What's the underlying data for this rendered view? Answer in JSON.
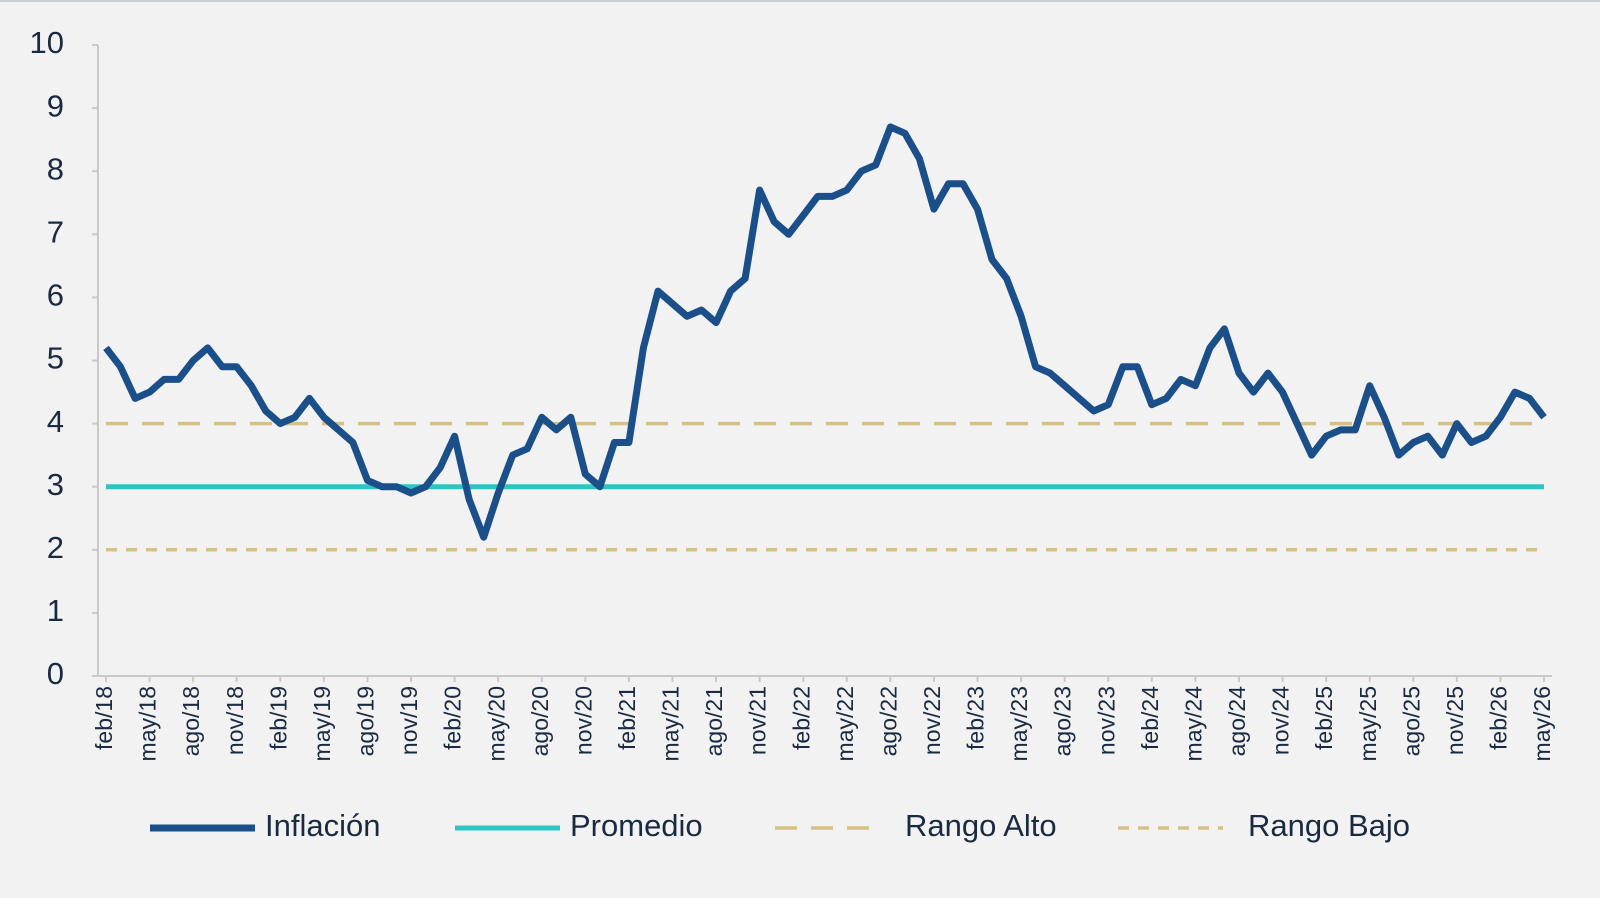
{
  "chart_data": {
    "type": "line",
    "categories": [
      "feb/18",
      null,
      null,
      "may/18",
      null,
      null,
      "ago/18",
      null,
      null,
      "nov/18",
      null,
      null,
      "feb/19",
      null,
      null,
      "may/19",
      null,
      null,
      "ago/19",
      null,
      null,
      "nov/19",
      null,
      null,
      "feb/20",
      null,
      null,
      "may/20",
      null,
      null,
      "ago/20",
      null,
      null,
      "nov/20",
      null,
      null,
      "feb/21",
      null,
      null,
      "may/21",
      null,
      null,
      "ago/21",
      null,
      null,
      "nov/21",
      null,
      null,
      "feb/22",
      null,
      null,
      "may/22",
      null,
      null,
      "ago/22",
      null,
      null,
      "nov/22",
      null,
      null,
      "feb/23",
      null,
      null,
      "may/23",
      null,
      null,
      "ago/23",
      null,
      null,
      "nov/23",
      null,
      null,
      "feb/24",
      null,
      null,
      "may/24",
      null,
      null,
      "ago/24",
      null,
      null,
      "nov/24",
      null,
      null,
      "feb/25",
      null,
      null,
      "may/25",
      null,
      null,
      "ago/25",
      null,
      null,
      "nov/25",
      null,
      null,
      "feb/26",
      null,
      null,
      "may/26"
    ],
    "series": [
      {
        "name": "Inflación",
        "color": "#1b4f8a",
        "dash": "none",
        "values": [
          5.2,
          4.9,
          4.4,
          4.5,
          4.7,
          4.7,
          5.0,
          5.2,
          4.9,
          4.9,
          4.6,
          4.2,
          4.0,
          4.1,
          4.4,
          4.1,
          3.9,
          3.7,
          3.1,
          3.0,
          3.0,
          2.9,
          3.0,
          3.3,
          3.8,
          2.8,
          2.2,
          2.9,
          3.5,
          3.6,
          4.1,
          3.9,
          4.1,
          3.2,
          3.0,
          3.7,
          3.7,
          5.2,
          6.1,
          5.9,
          5.7,
          5.8,
          5.6,
          6.1,
          6.3,
          7.7,
          7.2,
          7.0,
          7.3,
          7.6,
          7.6,
          7.7,
          8.0,
          8.1,
          8.7,
          8.6,
          8.2,
          7.4,
          7.8,
          7.8,
          7.4,
          6.6,
          6.3,
          5.7,
          4.9,
          4.8,
          4.6,
          4.4,
          4.2,
          4.3,
          4.9,
          4.9,
          4.3,
          4.4,
          4.7,
          4.6,
          5.2,
          5.5,
          4.8,
          4.5,
          4.8,
          4.5,
          4.0,
          3.5,
          3.8,
          3.9,
          3.9,
          4.6,
          4.1,
          3.5,
          3.7,
          3.8,
          3.5,
          4.0,
          3.7,
          3.8,
          4.1,
          4.5,
          4.4,
          4.1
        ]
      },
      {
        "name": "Promedio",
        "color": "#2ec4c4",
        "dash": "none",
        "values": [
          3,
          3,
          3,
          3,
          3,
          3,
          3,
          3,
          3,
          3,
          3,
          3,
          3,
          3,
          3,
          3,
          3,
          3,
          3,
          3,
          3,
          3,
          3,
          3,
          3,
          3,
          3,
          3,
          3,
          3,
          3,
          3,
          3,
          3,
          3,
          3,
          3,
          3,
          3,
          3,
          3,
          3,
          3,
          3,
          3,
          3,
          3,
          3,
          3,
          3,
          3,
          3,
          3,
          3,
          3,
          3,
          3,
          3,
          3,
          3,
          3,
          3,
          3,
          3,
          3,
          3,
          3,
          3,
          3,
          3,
          3,
          3,
          3,
          3,
          3,
          3,
          3,
          3,
          3,
          3,
          3,
          3,
          3,
          3,
          3,
          3,
          3,
          3,
          3,
          3,
          3,
          3,
          3,
          3,
          3,
          3,
          3,
          3,
          3,
          3
        ]
      },
      {
        "name": "Rango Alto",
        "color": "#d6c184",
        "dash": "22 14",
        "values": [
          4,
          4,
          4,
          4,
          4,
          4,
          4,
          4,
          4,
          4,
          4,
          4,
          4,
          4,
          4,
          4,
          4,
          4,
          4,
          4,
          4,
          4,
          4,
          4,
          4,
          4,
          4,
          4,
          4,
          4,
          4,
          4,
          4,
          4,
          4,
          4,
          4,
          4,
          4,
          4,
          4,
          4,
          4,
          4,
          4,
          4,
          4,
          4,
          4,
          4,
          4,
          4,
          4,
          4,
          4,
          4,
          4,
          4,
          4,
          4,
          4,
          4,
          4,
          4,
          4,
          4,
          4,
          4,
          4,
          4,
          4,
          4,
          4,
          4,
          4,
          4,
          4,
          4,
          4,
          4,
          4,
          4,
          4,
          4,
          4,
          4,
          4,
          4,
          4,
          4,
          4,
          4,
          4,
          4,
          4,
          4,
          4,
          4,
          4,
          4
        ]
      },
      {
        "name": "Rango Bajo",
        "color": "#d6c184",
        "dash": "11 9",
        "values": [
          2,
          2,
          2,
          2,
          2,
          2,
          2,
          2,
          2,
          2,
          2,
          2,
          2,
          2,
          2,
          2,
          2,
          2,
          2,
          2,
          2,
          2,
          2,
          2,
          2,
          2,
          2,
          2,
          2,
          2,
          2,
          2,
          2,
          2,
          2,
          2,
          2,
          2,
          2,
          2,
          2,
          2,
          2,
          2,
          2,
          2,
          2,
          2,
          2,
          2,
          2,
          2,
          2,
          2,
          2,
          2,
          2,
          2,
          2,
          2,
          2,
          2,
          2,
          2,
          2,
          2,
          2,
          2,
          2,
          2,
          2,
          2,
          2,
          2,
          2,
          2,
          2,
          2,
          2,
          2,
          2,
          2,
          2,
          2,
          2,
          2,
          2,
          2,
          2,
          2,
          2,
          2,
          2,
          2,
          2,
          2,
          2,
          2,
          2,
          2
        ]
      }
    ],
    "ylim": [
      0,
      10
    ],
    "yticks": [
      0,
      1,
      2,
      3,
      4,
      5,
      6,
      7,
      8,
      9,
      10
    ],
    "grid": false
  }
}
